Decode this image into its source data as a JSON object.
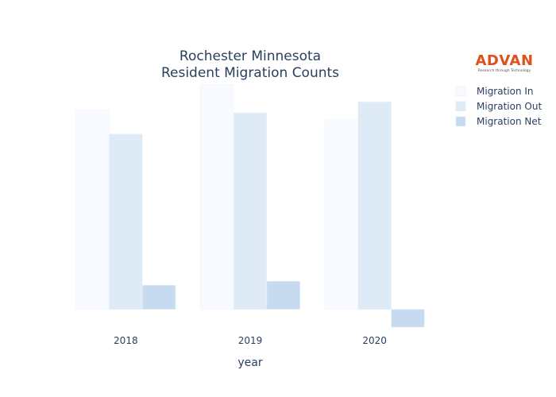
{
  "logo": {
    "name": "ADVAN",
    "tagline": "Research through Technology"
  },
  "chart_data": {
    "type": "bar",
    "title": [
      "Rochester Minnesota",
      "Resident Migration Counts"
    ],
    "xlabel": "year",
    "ylabel": "",
    "categories": [
      "2018",
      "2019",
      "2020"
    ],
    "series": [
      {
        "name": "Migration In",
        "color": "#f7fbff",
        "values": [
          3470,
          3910,
          3300
        ]
      },
      {
        "name": "Migration Out",
        "color": "#deebf7",
        "values": [
          3050,
          3420,
          3610
        ]
      },
      {
        "name": "Migration Net",
        "color": "#c6dbef",
        "values": [
          420,
          490,
          -310
        ]
      }
    ],
    "ylim": [
      -420,
      4000
    ],
    "grid": false,
    "legend": "top-right"
  }
}
